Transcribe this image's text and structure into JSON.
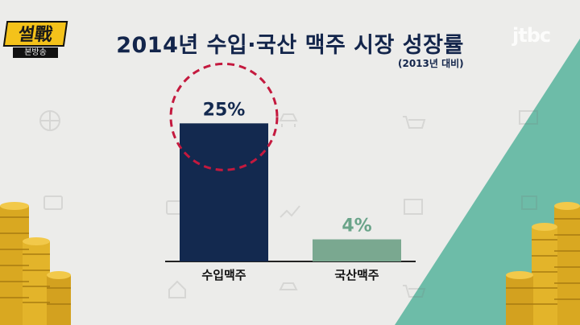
{
  "program_logo": {
    "text": "썰戰",
    "sub": "본방송"
  },
  "channel_logo": "jtbc",
  "chart_data": {
    "type": "bar",
    "title": "2014년 수입·국산 맥주 시장 성장률",
    "subtitle": "(2013년 대비)",
    "categories": [
      "수입맥주",
      "국산맥주"
    ],
    "values": [
      25,
      4
    ],
    "value_labels": [
      "25%",
      "4%"
    ],
    "unit": "%",
    "ylim": [
      0,
      30
    ],
    "grid": false,
    "highlighted_category": "수입맥주",
    "colors": {
      "bars": [
        "#13294f",
        "#7aa890"
      ],
      "labels": [
        "#13294f",
        "#6aa489"
      ],
      "highlight_circle": "#c4193e"
    }
  },
  "colors": {
    "background": "#ececea",
    "accent_band": "#6dbca8",
    "coin": "#e8b830",
    "title": "#13254b"
  }
}
